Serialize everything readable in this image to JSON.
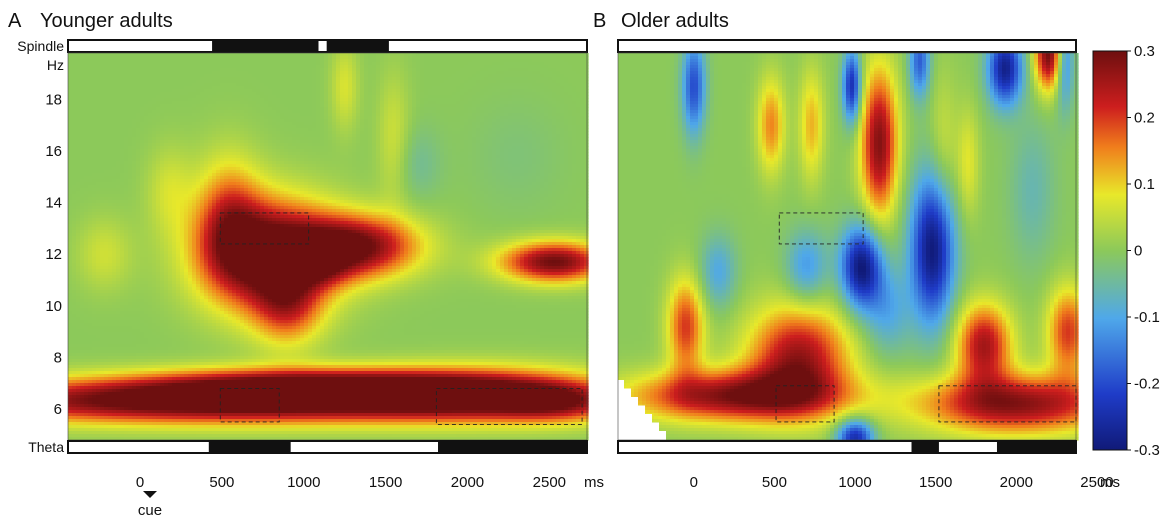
{
  "chart_data": {
    "type": "heatmap",
    "panels": [
      {
        "letter": "A",
        "title": "Younger adults",
        "row_label_top": "Spindle",
        "row_label_bottom": "Theta",
        "y_unit": "Hz",
        "y_ticks": [
          6,
          8,
          10,
          12,
          14,
          16,
          18
        ],
        "x_ticks": [
          0,
          500,
          1000,
          1500,
          2000,
          2500
        ],
        "x_unit": "ms",
        "x_range_ms": [
          -440,
          2730
        ],
        "y_range_hz": [
          4.8,
          19.8
        ],
        "spindle_bar": [
          [
            440,
            1090
          ],
          [
            1140,
            1520
          ]
        ],
        "theta_bar": [
          [
            420,
            920
          ],
          [
            1820,
            2730
          ]
        ],
        "roi_boxes": [
          {
            "x": [
              490,
              1030
            ],
            "y_hz": [
              12.4,
              13.6
            ]
          },
          {
            "x": [
              490,
              850
            ],
            "y_hz": [
              5.5,
              6.8
            ]
          },
          {
            "x": [
              1810,
              2700
            ],
            "y_hz": [
              5.4,
              6.8
            ]
          }
        ],
        "cue_label": "cue",
        "cue_ms": 0,
        "blobs": [
          {
            "x": 500,
            "y": 6.3,
            "sx": 1200,
            "sy": 0.6,
            "a": 0.36
          },
          {
            "x": 1000,
            "y": 7.0,
            "sx": 700,
            "sy": 0.45,
            "a": 0.2
          },
          {
            "x": 2100,
            "y": 6.6,
            "sx": 550,
            "sy": 0.7,
            "a": 0.24
          },
          {
            "x": 2550,
            "y": 6.2,
            "sx": 250,
            "sy": 0.5,
            "a": 0.12
          },
          {
            "x": 780,
            "y": 12.0,
            "sx": 290,
            "sy": 1.5,
            "a": 0.33
          },
          {
            "x": 540,
            "y": 13.4,
            "sx": 140,
            "sy": 1.7,
            "a": 0.15
          },
          {
            "x": 1320,
            "y": 12.3,
            "sx": 270,
            "sy": 0.85,
            "a": 0.29
          },
          {
            "x": 900,
            "y": 10.0,
            "sx": 150,
            "sy": 1.1,
            "a": 0.16
          },
          {
            "x": 2530,
            "y": 11.7,
            "sx": 230,
            "sy": 0.55,
            "a": 0.3
          },
          {
            "x": 1100,
            "y": 11.6,
            "sx": 120,
            "sy": 0.6,
            "a": 0.08
          },
          {
            "x": -220,
            "y": 12.0,
            "sx": 120,
            "sy": 1.0,
            "a": 0.06
          },
          {
            "x": 180,
            "y": 14.5,
            "sx": 100,
            "sy": 1.2,
            "a": 0.06
          },
          {
            "x": 1250,
            "y": 18.5,
            "sx": 60,
            "sy": 1.2,
            "a": 0.07
          },
          {
            "x": 1550,
            "y": 16.5,
            "sx": 70,
            "sy": 1.8,
            "a": 0.06
          },
          {
            "x": 1700,
            "y": 15.5,
            "sx": 100,
            "sy": 1.0,
            "a": -0.04
          },
          {
            "x": 2300,
            "y": 15.8,
            "sx": 200,
            "sy": 1.5,
            "a": -0.02
          }
        ]
      },
      {
        "letter": "B",
        "title": "Older adults",
        "row_label_top": "",
        "row_label_bottom": "",
        "y_unit": "",
        "y_ticks": [],
        "x_ticks": [
          0,
          500,
          1000,
          1500,
          2000,
          2500
        ],
        "x_unit": "ms",
        "x_range_ms": [
          -470,
          2370
        ],
        "y_range_hz": [
          4.8,
          19.8
        ],
        "spindle_bar": [],
        "theta_bar": [
          [
            1350,
            1520
          ],
          [
            1880,
            2370
          ]
        ],
        "roi_boxes": [
          {
            "x": [
              530,
              1050
            ],
            "y_hz": [
              12.4,
              13.6
            ]
          },
          {
            "x": [
              510,
              870
            ],
            "y_hz": [
              5.5,
              6.9
            ]
          },
          {
            "x": 1520,
            "x_end": 2370,
            "y_hz": [
              5.5,
              6.9
            ]
          }
        ],
        "cue_label": "",
        "cue_ms": 0,
        "blobs": [
          {
            "x": 250,
            "y": 6.5,
            "sx": 450,
            "sy": 0.7,
            "a": 0.28
          },
          {
            "x": 650,
            "y": 8.0,
            "sx": 220,
            "sy": 1.4,
            "a": 0.26
          },
          {
            "x": -50,
            "y": 9.2,
            "sx": 80,
            "sy": 1.3,
            "a": 0.2
          },
          {
            "x": 2000,
            "y": 6.2,
            "sx": 420,
            "sy": 0.8,
            "a": 0.28
          },
          {
            "x": 1800,
            "y": 8.5,
            "sx": 120,
            "sy": 1.1,
            "a": 0.25
          },
          {
            "x": 2320,
            "y": 9.0,
            "sx": 90,
            "sy": 1.2,
            "a": 0.2
          },
          {
            "x": 1150,
            "y": 16.3,
            "sx": 80,
            "sy": 2.0,
            "a": 0.28
          },
          {
            "x": 480,
            "y": 17.0,
            "sx": 60,
            "sy": 1.3,
            "a": 0.15
          },
          {
            "x": 730,
            "y": 17.0,
            "sx": 55,
            "sy": 1.5,
            "a": 0.12
          },
          {
            "x": 2200,
            "y": 19.8,
            "sx": 60,
            "sy": 1.0,
            "a": 0.3
          },
          {
            "x": 1550,
            "y": 16.0,
            "sx": 60,
            "sy": 2.0,
            "a": 0.06
          },
          {
            "x": 1040,
            "y": 11.5,
            "sx": 90,
            "sy": 1.1,
            "a": -0.3
          },
          {
            "x": 1480,
            "y": 12.2,
            "sx": 95,
            "sy": 2.0,
            "a": -0.3
          },
          {
            "x": 980,
            "y": 18.5,
            "sx": 40,
            "sy": 1.0,
            "a": -0.25
          },
          {
            "x": 1400,
            "y": 19.5,
            "sx": 45,
            "sy": 1.0,
            "a": -0.18
          },
          {
            "x": 1930,
            "y": 19.2,
            "sx": 75,
            "sy": 1.0,
            "a": -0.28
          },
          {
            "x": 2300,
            "y": 19.5,
            "sx": 40,
            "sy": 1.3,
            "a": -0.15
          },
          {
            "x": 0,
            "y": 18.5,
            "sx": 50,
            "sy": 1.3,
            "a": -0.2
          },
          {
            "x": 1000,
            "y": 4.9,
            "sx": 80,
            "sy": 0.5,
            "a": -0.26
          },
          {
            "x": 150,
            "y": 11.3,
            "sx": 80,
            "sy": 1.0,
            "a": -0.1
          },
          {
            "x": 700,
            "y": 11.5,
            "sx": 90,
            "sy": 1.0,
            "a": -0.12
          },
          {
            "x": 1200,
            "y": 9.8,
            "sx": 100,
            "sy": 1.2,
            "a": -0.1
          },
          {
            "x": 2100,
            "y": 14.5,
            "sx": 100,
            "sy": 2.0,
            "a": -0.06
          },
          {
            "x": 1700,
            "y": 15.5,
            "sx": 50,
            "sy": 1.5,
            "a": 0.08
          }
        ]
      }
    ],
    "colorbar": {
      "ticks": [
        "0.3",
        "0.2",
        "0.1",
        "0",
        "-0.1",
        "-0.2",
        "-0.3"
      ],
      "values": [
        0.3,
        0.2,
        0.1,
        0,
        -0.1,
        -0.2,
        -0.3
      ],
      "range": [
        -0.3,
        0.3
      ],
      "colors": [
        "#101a78",
        "#1f3cc8",
        "#4fa8ea",
        "#8cc95a",
        "#e8e82a",
        "#f07d1c",
        "#cd1e1e",
        "#6e0f0f"
      ]
    }
  }
}
